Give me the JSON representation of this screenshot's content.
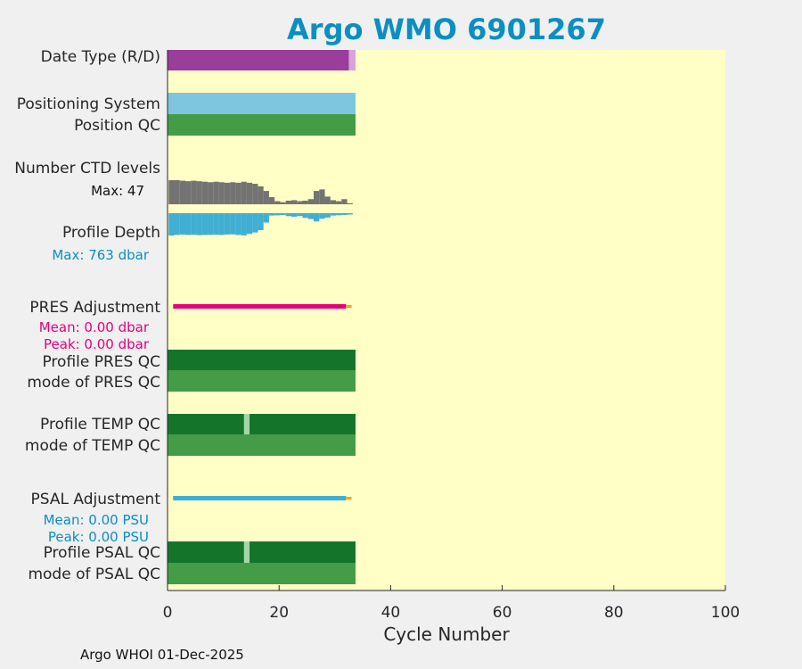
{
  "chart_data": {
    "type": "bar",
    "title": "Argo WMO 6901267",
    "xlabel": "Cycle Number",
    "xlim": [
      0,
      100
    ],
    "x_ticks": [
      0,
      20,
      40,
      60,
      80,
      100
    ],
    "n_cycles": 33,
    "colors": {
      "title": "#0a8fc2",
      "plot_bg": "#ffffc6",
      "date_R": "#9a3d9b",
      "date_D": "#d9a2d9",
      "positioning": "#7ec6df",
      "qc_light_green": "#459c46",
      "qc_dark_green": "#14752a",
      "qc_flag_light": "#a5d6a5",
      "ctd_levels": "#737373",
      "profile_depth": "#41aed3",
      "pres_adjustment": "#e6007e",
      "psal_adjustment": "#3daed8",
      "adjust_end": "#ffa500"
    },
    "rows": {
      "date_type": "Date Type (R/D)",
      "positioning_system": "Positioning System",
      "position_qc": "Position QC",
      "ctd_levels": "Number CTD levels",
      "profile_depth": "Profile Depth",
      "pres_adjustment": "PRES Adjustment",
      "profile_pres_qc": "Profile PRES QC",
      "mode_pres_qc": "mode of PRES QC",
      "profile_temp_qc": "Profile TEMP QC",
      "mode_temp_qc": "mode of TEMP QC",
      "psal_adjustment": "PSAL Adjustment",
      "profile_psal_qc": "Profile PSAL QC",
      "mode_psal_qc": "mode of PSAL QC"
    },
    "notes": {
      "ctd_max": "Max: 47",
      "depth_max": "Max:  763 dbar",
      "pres_mean": "Mean: 0.00 dbar",
      "pres_peak": "Peak: 0.00 dbar",
      "psal_mean": "Mean: 0.00 PSU",
      "psal_peak": "Peak: 0.00 PSU"
    },
    "ctd_levels": [
      47,
      47,
      46,
      45,
      46,
      45,
      44,
      43,
      44,
      43,
      42,
      43,
      42,
      44,
      42,
      40,
      35,
      26,
      14,
      6,
      4,
      7,
      8,
      6,
      7,
      10,
      26,
      29,
      15,
      8,
      6,
      10,
      2
    ],
    "profile_depth": [
      763,
      745,
      730,
      745,
      738,
      752,
      745,
      740,
      735,
      745,
      730,
      725,
      745,
      760,
      710,
      660,
      580,
      320,
      80,
      75,
      60,
      100,
      120,
      100,
      160,
      200,
      280,
      190,
      150,
      80,
      70,
      60,
      40
    ],
    "temp_qc_flag_cycle": 14,
    "psal_qc_flag_cycle": 14
  },
  "footer": "Argo WHOI 01-Dec-2025"
}
